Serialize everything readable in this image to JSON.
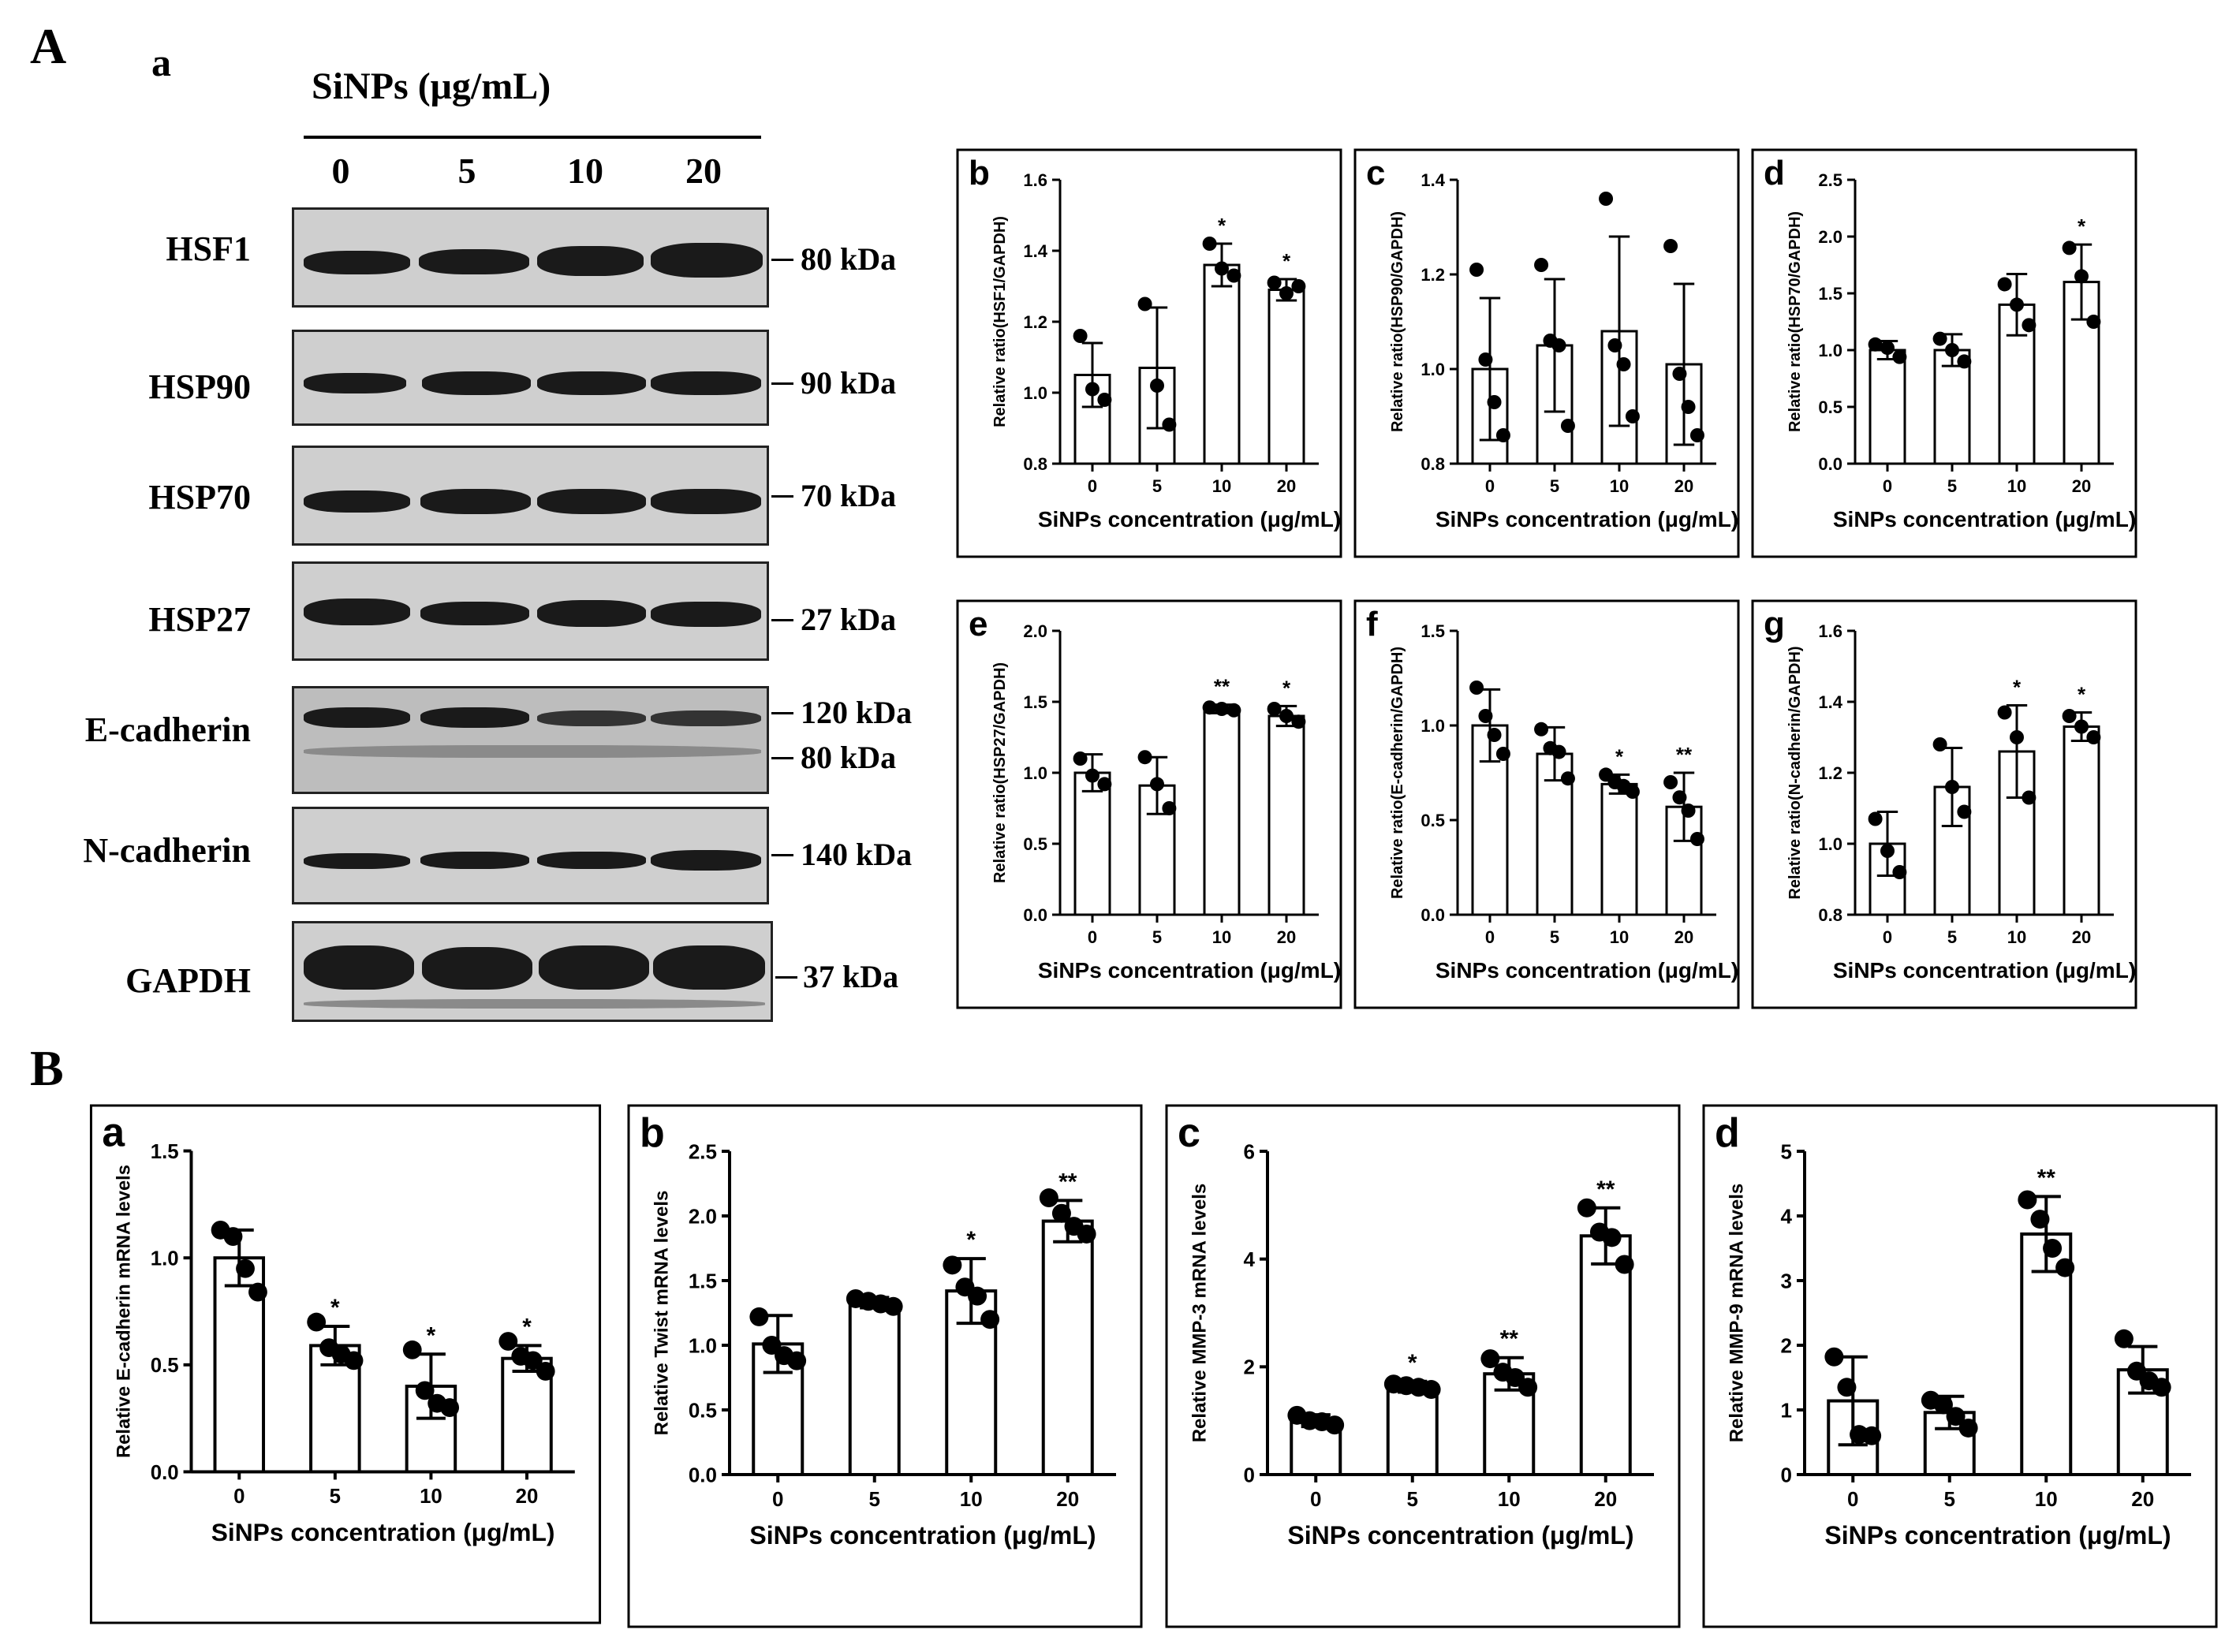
{
  "figure": {
    "section_a": "A",
    "section_b": "B",
    "blot_panel_letter": "a",
    "blot_header": "SiNPs (μg/mL)",
    "doses": [
      "0",
      "5",
      "10",
      "20"
    ],
    "blots": [
      {
        "name": "HSF1",
        "markers": [
          "80 kDa"
        ]
      },
      {
        "name": "HSP90",
        "markers": [
          "90 kDa"
        ]
      },
      {
        "name": "HSP70",
        "markers": [
          "70 kDa"
        ]
      },
      {
        "name": "HSP27",
        "markers": [
          "27 kDa"
        ]
      },
      {
        "name": "E-cadherin",
        "markers": [
          "120 kDa",
          "80 kDa"
        ]
      },
      {
        "name": "N-cadherin",
        "markers": [
          "140 kDa"
        ]
      },
      {
        "name": "GAPDH",
        "markers": [
          "37 kDa"
        ]
      }
    ]
  },
  "chart_data": [
    {
      "panel": "b",
      "type": "bar",
      "categories": [
        "0",
        "5",
        "10",
        "20"
      ],
      "values": [
        1.05,
        1.07,
        1.36,
        1.29
      ],
      "errors": [
        0.09,
        0.17,
        0.06,
        0.03
      ],
      "points": [
        [
          1.16,
          1.01,
          0.98
        ],
        [
          1.25,
          1.02,
          0.91
        ],
        [
          1.42,
          1.35,
          1.33
        ],
        [
          1.31,
          1.28,
          1.3
        ]
      ],
      "significance": [
        "",
        "",
        "*",
        "*"
      ],
      "ylim": [
        0.8,
        1.6
      ],
      "yticks": [
        "0.8",
        "1.0",
        "1.2",
        "1.4",
        "1.6"
      ],
      "xlabel": "SiNPs concentration (μg/mL)",
      "ylabel": "Relative ratio(HSF1/GAPDH)"
    },
    {
      "panel": "c",
      "type": "bar",
      "categories": [
        "0",
        "5",
        "10",
        "20"
      ],
      "values": [
        1.0,
        1.05,
        1.08,
        1.01
      ],
      "errors": [
        0.15,
        0.14,
        0.2,
        0.17
      ],
      "points": [
        [
          1.21,
          1.02,
          0.93,
          0.86
        ],
        [
          1.22,
          1.06,
          1.05,
          0.88
        ],
        [
          1.36,
          1.05,
          1.01,
          0.9
        ],
        [
          1.26,
          0.99,
          0.92,
          0.86
        ]
      ],
      "significance": [
        "",
        "",
        "",
        ""
      ],
      "ylim": [
        0.8,
        1.4
      ],
      "yticks": [
        "0.8",
        "1.0",
        "1.2",
        "1.4"
      ],
      "xlabel": "SiNPs concentration (μg/mL)",
      "ylabel": "Relative ratio(HSP90/GAPDH)"
    },
    {
      "panel": "d",
      "type": "bar",
      "categories": [
        "0",
        "5",
        "10",
        "20"
      ],
      "values": [
        1.0,
        1.0,
        1.4,
        1.6
      ],
      "errors": [
        0.08,
        0.14,
        0.27,
        0.33
      ],
      "points": [
        [
          1.05,
          1.02,
          0.94
        ],
        [
          1.1,
          1.0,
          0.9
        ],
        [
          1.58,
          1.4,
          1.22
        ],
        [
          1.9,
          1.65,
          1.25
        ]
      ],
      "significance": [
        "",
        "",
        "",
        "*"
      ],
      "ylim": [
        0.0,
        2.5
      ],
      "yticks": [
        "0.0",
        "0.5",
        "1.0",
        "1.5",
        "2.0",
        "2.5"
      ],
      "xlabel": "SiNPs concentration (μg/mL)",
      "ylabel": "Relative ratio(HSP70/GAPDH)"
    },
    {
      "panel": "e",
      "type": "bar",
      "categories": [
        "0",
        "5",
        "10",
        "20"
      ],
      "values": [
        1.0,
        0.91,
        1.45,
        1.4
      ],
      "errors": [
        0.13,
        0.2,
        0.03,
        0.07
      ],
      "points": [
        [
          1.1,
          0.98,
          0.92
        ],
        [
          1.11,
          0.92,
          0.75
        ],
        [
          1.46,
          1.45,
          1.44
        ],
        [
          1.45,
          1.4,
          1.36
        ]
      ],
      "significance": [
        "",
        "",
        "**",
        "*"
      ],
      "ylim": [
        0.0,
        2.0
      ],
      "yticks": [
        "0.0",
        "0.5",
        "1.0",
        "1.5",
        "2.0"
      ],
      "xlabel": "SiNPs concentration (μg/mL)",
      "ylabel": "Relative ratio(HSP27/GAPDH)"
    },
    {
      "panel": "f",
      "type": "bar",
      "categories": [
        "0",
        "5",
        "10",
        "20"
      ],
      "values": [
        1.0,
        0.85,
        0.69,
        0.57
      ],
      "errors": [
        0.19,
        0.14,
        0.05,
        0.18
      ],
      "points": [
        [
          1.2,
          1.05,
          0.95,
          0.85
        ],
        [
          0.98,
          0.88,
          0.86,
          0.72
        ],
        [
          0.74,
          0.7,
          0.68,
          0.65
        ],
        [
          0.7,
          0.62,
          0.55,
          0.4
        ]
      ],
      "significance": [
        "",
        "",
        "*",
        "**"
      ],
      "ylim": [
        0.0,
        1.5
      ],
      "yticks": [
        "0.0",
        "0.5",
        "1.0",
        "1.5"
      ],
      "xlabel": "SiNPs concentration (μg/mL)",
      "ylabel": "Relative ratio(E-cadherin/GAPDH)"
    },
    {
      "panel": "g",
      "type": "bar",
      "categories": [
        "0",
        "5",
        "10",
        "20"
      ],
      "values": [
        1.0,
        1.16,
        1.26,
        1.33
      ],
      "errors": [
        0.09,
        0.11,
        0.13,
        0.04
      ],
      "points": [
        [
          1.07,
          0.98,
          0.92
        ],
        [
          1.28,
          1.16,
          1.09
        ],
        [
          1.37,
          1.3,
          1.13
        ],
        [
          1.36,
          1.33,
          1.3
        ]
      ],
      "significance": [
        "",
        "",
        "*",
        "*"
      ],
      "ylim": [
        0.8,
        1.6
      ],
      "yticks": [
        "0.8",
        "1.0",
        "1.2",
        "1.4",
        "1.6"
      ],
      "xlabel": "SiNPs concentration (μg/mL)",
      "ylabel": "Relative ratio(N-cadherin/GAPDH)"
    },
    {
      "panel": "a",
      "type": "bar",
      "categories": [
        "0",
        "5",
        "10",
        "20"
      ],
      "values": [
        1.0,
        0.59,
        0.4,
        0.53
      ],
      "errors": [
        0.13,
        0.09,
        0.15,
        0.06
      ],
      "points": [
        [
          1.13,
          1.1,
          0.95,
          0.84
        ],
        [
          0.7,
          0.58,
          0.55,
          0.52
        ],
        [
          0.57,
          0.38,
          0.32,
          0.3
        ],
        [
          0.61,
          0.54,
          0.52,
          0.47
        ]
      ],
      "significance": [
        "",
        "*",
        "*",
        "*"
      ],
      "ylim": [
        0.0,
        1.5
      ],
      "yticks": [
        "0.0",
        "0.5",
        "1.0",
        "1.5"
      ],
      "xlabel": "SiNPs concentration (μg/mL)",
      "ylabel": "Relative E-cadherin mRNA levels"
    },
    {
      "panel": "b",
      "type": "bar",
      "categories": [
        "0",
        "5",
        "10",
        "20"
      ],
      "values": [
        1.01,
        1.33,
        1.42,
        1.96
      ],
      "errors": [
        0.22,
        0.04,
        0.25,
        0.16
      ],
      "points": [
        [
          1.22,
          1.0,
          0.92,
          0.88
        ],
        [
          1.36,
          1.34,
          1.32,
          1.3
        ],
        [
          1.62,
          1.45,
          1.38,
          1.2
        ],
        [
          2.14,
          2.02,
          1.92,
          1.86
        ]
      ],
      "significance": [
        "",
        "",
        "*",
        "**"
      ],
      "ylim": [
        0.0,
        2.5
      ],
      "yticks": [
        "0.0",
        "0.5",
        "1.0",
        "1.5",
        "2.0",
        "2.5"
      ],
      "xlabel": "SiNPs concentration (μg/mL)",
      "ylabel": "Relative Twist mRNA levels"
    },
    {
      "panel": "c",
      "type": "bar",
      "categories": [
        "0",
        "5",
        "10",
        "20"
      ],
      "values": [
        1.0,
        1.63,
        1.87,
        4.43
      ],
      "errors": [
        0.11,
        0.1,
        0.3,
        0.52
      ],
      "points": [
        [
          1.1,
          1.0,
          0.98,
          0.92
        ],
        [
          1.68,
          1.65,
          1.62,
          1.58
        ],
        [
          2.15,
          1.9,
          1.8,
          1.62
        ],
        [
          4.95,
          4.5,
          4.4,
          3.9
        ]
      ],
      "significance": [
        "",
        "*",
        "**",
        "**"
      ],
      "ylim": [
        0,
        6
      ],
      "yticks": [
        "0",
        "2",
        "4",
        "6"
      ],
      "xlabel": "SiNPs concentration (μg/mL)",
      "ylabel": "Relative MMP-3 mRNA levels"
    },
    {
      "panel": "d",
      "type": "bar",
      "categories": [
        "0",
        "5",
        "10",
        "20"
      ],
      "values": [
        1.14,
        0.96,
        3.72,
        1.62
      ],
      "errors": [
        0.68,
        0.25,
        0.58,
        0.36
      ],
      "points": [
        [
          1.82,
          1.35,
          0.62,
          0.6
        ],
        [
          1.15,
          1.08,
          0.9,
          0.72
        ],
        [
          4.25,
          3.95,
          3.5,
          3.2
        ],
        [
          2.1,
          1.6,
          1.45,
          1.35
        ]
      ],
      "significance": [
        "",
        "",
        "**",
        ""
      ],
      "ylim": [
        0,
        5
      ],
      "yticks": [
        "0",
        "1",
        "2",
        "3",
        "4",
        "5"
      ],
      "xlabel": "SiNPs concentration (μg/mL)",
      "ylabel": "Relative MMP-9 mRNA levels"
    }
  ]
}
